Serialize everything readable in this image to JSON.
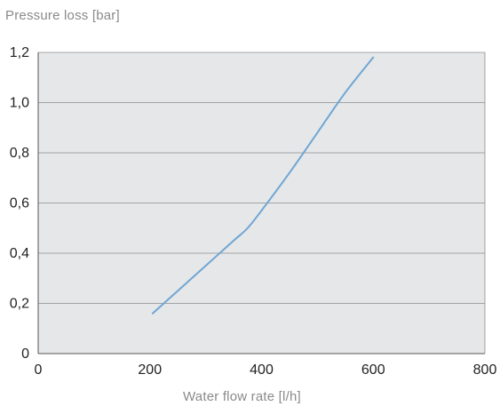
{
  "chart_data": {
    "type": "line",
    "xlabel": "Water flow rate [l/h]",
    "ylabel": "Pressure loss [bar]",
    "xlim": [
      0,
      800
    ],
    "ylim": [
      0,
      1.2
    ],
    "x_ticks": [
      "0",
      "200",
      "400",
      "600",
      "800"
    ],
    "y_ticks": [
      "0",
      "0,2",
      "0,4",
      "0,6",
      "0,8",
      "1,0",
      "1,2"
    ],
    "grid": "horizontal",
    "series": [
      {
        "color": "#6fa6d4",
        "points": [
          {
            "x": 205,
            "y": 0.16
          },
          {
            "x": 250,
            "y": 0.25
          },
          {
            "x": 300,
            "y": 0.35
          },
          {
            "x": 350,
            "y": 0.45
          },
          {
            "x": 375,
            "y": 0.5
          },
          {
            "x": 400,
            "y": 0.57
          },
          {
            "x": 450,
            "y": 0.72
          },
          {
            "x": 500,
            "y": 0.88
          },
          {
            "x": 550,
            "y": 1.04
          },
          {
            "x": 600,
            "y": 1.18
          }
        ]
      }
    ],
    "colors": {
      "plot_background": "#e6e7e8",
      "grid": "#8c8c8c",
      "axis": "#555555",
      "tick_text": "#222222",
      "axis_title": "#8a8a8a"
    }
  }
}
